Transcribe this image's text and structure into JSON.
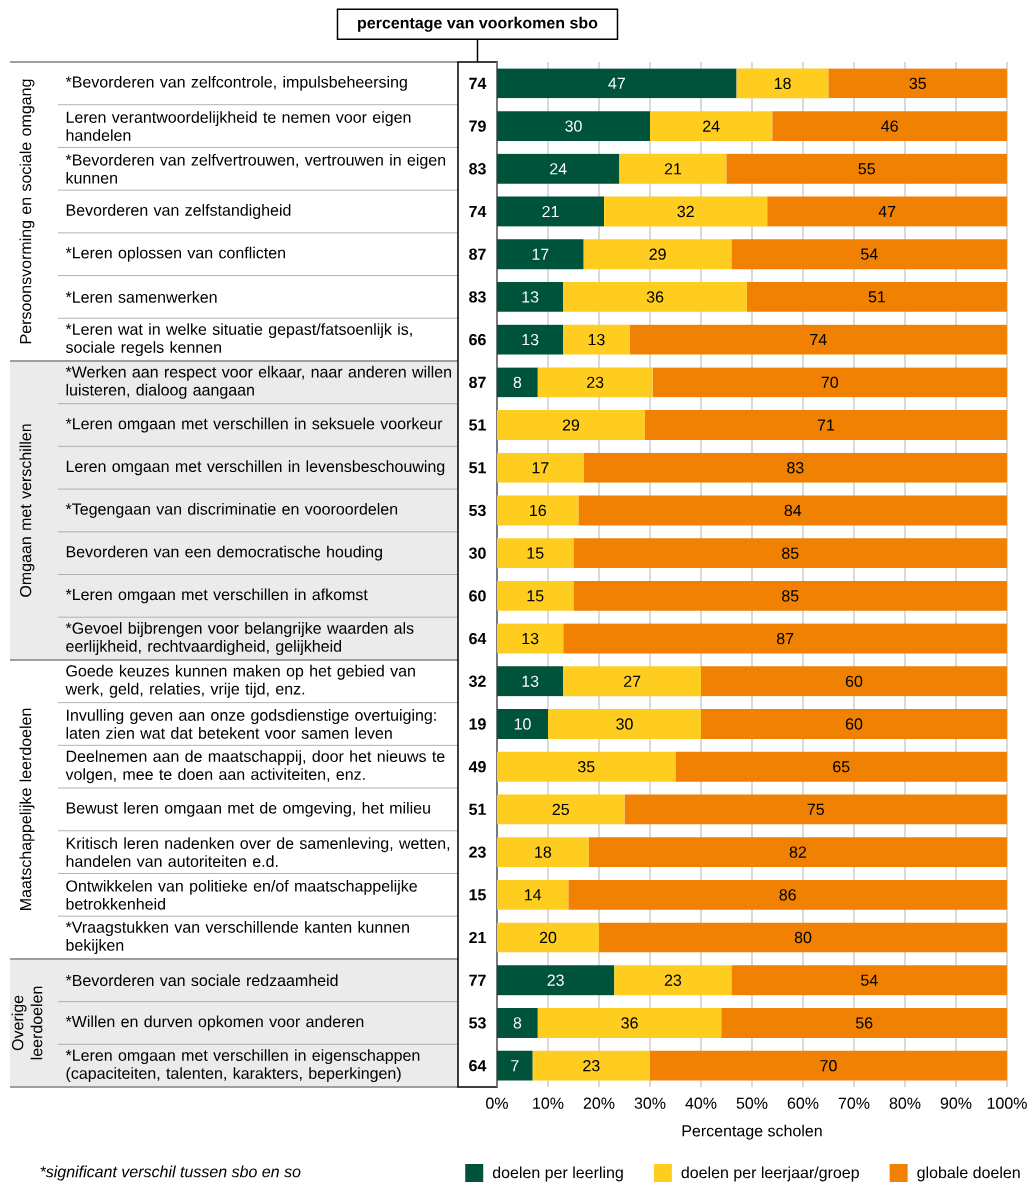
{
  "chart_data": [
    {
      "type": "other",
      "title": "percentage van voorkomen sbo",
      "values": [
        74,
        79,
        83,
        74,
        87,
        83,
        66,
        87,
        51,
        51,
        53,
        30,
        60,
        64,
        32,
        19,
        49,
        51,
        23,
        15,
        21,
        77,
        53,
        64
      ],
      "data_labels": true
    },
    {
      "type": "bar",
      "orientation": "horizontal",
      "stacked": true,
      "ylabel": "Persoonsvorming en sociale omgang",
      "categories": [
        "*Bevorderen van zelfcontrole, impulsbeheersing",
        "Leren verantwoordelijkheid te nemen voor eigen handelen",
        "*Bevorderen van zelfvertrouwen, vertrouwen in eigen kunnen",
        "Bevorderen van zelfstandigheid",
        "*Leren oplossen van conflicten",
        "*Leren samenwerken",
        "*Leren wat in welke situatie gepast/fatsoenlijk is, sociale regels kennen"
      ],
      "series": [
        {
          "color": "#00533b",
          "values": [
            47,
            30,
            24,
            21,
            17,
            13,
            13
          ]
        },
        {
          "color": "#fecd1f",
          "values": [
            18,
            24,
            21,
            32,
            29,
            36,
            13
          ]
        },
        {
          "color": "#f08102",
          "values": [
            35,
            46,
            55,
            47,
            54,
            51,
            74
          ]
        }
      ],
      "xlim": [
        0,
        100
      ],
      "xticks": [
        0,
        10,
        20,
        30,
        40,
        50,
        60,
        70,
        80,
        90,
        100
      ],
      "grid": "x",
      "tick_labels": "y",
      "data_labels": true
    },
    {
      "type": "bar",
      "orientation": "horizontal",
      "stacked": true,
      "ylabel": "Omgaan met verschillen",
      "categories": [
        "*Werken aan respect voor elkaar, naar anderen willen luisteren, dialoog aangaan",
        "*Leren omgaan met verschillen in seksuele voorkeur",
        "Leren omgaan met verschillen in levensbeschouwing",
        "*Tegengaan van discriminatie en vooroordelen",
        "Bevorderen van een democratische houding",
        "*Leren omgaan met verschillen in afkomst",
        "*Gevoel bijbrengen voor belangrijke waarden als eerlijkheid, rechtvaardigheid, gelijkheid"
      ],
      "series": [
        {
          "color": "#00533b",
          "values": [
            8,
            null,
            null,
            null,
            null,
            null,
            null
          ],
          "value_labels": [
            "8",
            null,
            null,
            null,
            null,
            null,
            null
          ]
        },
        {
          "color": "#fecd1f",
          "values": [
            22.5,
            29,
            17,
            16,
            15,
            15,
            13
          ],
          "value_labels": [
            "23",
            "29",
            "17",
            "16",
            "15",
            "15",
            "13"
          ]
        },
        {
          "color": "#f08102",
          "values": [
            69.5,
            71,
            83,
            84,
            85,
            85,
            87
          ],
          "value_labels": [
            "70",
            "71",
            "83",
            "84",
            "85",
            "85",
            "87"
          ]
        }
      ],
      "xlim": [
        0,
        100
      ],
      "xticks": [
        0,
        10,
        20,
        30,
        40,
        50,
        60,
        70,
        80,
        90,
        100
      ],
      "grid": "x",
      "tick_labels": "y"
    },
    {
      "type": "bar",
      "orientation": "horizontal",
      "stacked": true,
      "ylabel": "Maatschappelijke leerdoelen",
      "categories": [
        "Goede keuzes kunnen maken op het gebied van werk, geld, relaties, vrije tijd, enz.",
        "Invulling geven aan onze godsdienstige overtuiging: laten zien wat dat betekent voor samen leven",
        "Deelnemen aan de maatschappij, door het nieuws te volgen, mee te doen aan activiteiten, enz.",
        "Bewust leren omgaan met de omgeving, het milieu",
        "Kritisch leren nadenken over de samenleving, wetten, handelen van autoriteiten e.d.",
        "Ontwikkelen van politieke en/of maatschappelijke betrokkenheid",
        "*Vraagstukken van verschillende kanten kunnen bekijken"
      ],
      "series": [
        {
          "color": "#00533b",
          "values": [
            13,
            10,
            null,
            null,
            null,
            null,
            null
          ]
        },
        {
          "color": "#fecd1f",
          "values": [
            27,
            30,
            35,
            25,
            18,
            14,
            20
          ]
        },
        {
          "color": "#f08102",
          "values": [
            60,
            60,
            65,
            75,
            82,
            86,
            80
          ]
        }
      ],
      "xlim": [
        0,
        100
      ],
      "xticks": [
        0,
        10,
        20,
        30,
        40,
        50,
        60,
        70,
        80,
        90,
        100
      ],
      "grid": "x",
      "tick_labels": "y",
      "data_labels": true
    },
    {
      "type": "bar",
      "orientation": "horizontal",
      "stacked": true,
      "ylabel": "Overige leerdoelen",
      "xlabel": "Percentage scholen",
      "categories": [
        "*Bevorderen van sociale redzaamheid",
        "*Willen en durven opkomen voor anderen",
        "*Leren omgaan met verschillen in eigenschappen (capaciteiten, talenten, karakters, beperkingen)"
      ],
      "series": [
        {
          "name": "doelen per leerling",
          "color": "#00533b",
          "values": [
            23,
            8,
            7
          ]
        },
        {
          "name": "doelen per leerjaar/groep",
          "color": "#fecd1f",
          "values": [
            23,
            36,
            23
          ]
        },
        {
          "name": "globale doelen",
          "color": "#f08102",
          "values": [
            54,
            56,
            70
          ]
        }
      ],
      "xlim": [
        0,
        100
      ],
      "xticks": [
        {
          "value": 0,
          "label": "0%"
        },
        {
          "value": 10,
          "label": "10%"
        },
        {
          "value": 20,
          "label": "20%"
        },
        {
          "value": 30,
          "label": "30%"
        },
        {
          "value": 40,
          "label": "40%"
        },
        {
          "value": 50,
          "label": "50%"
        },
        {
          "value": 60,
          "label": "60%"
        },
        {
          "value": 70,
          "label": "70%"
        },
        {
          "value": 80,
          "label": "80%"
        },
        {
          "value": 90,
          "label": "90%"
        },
        {
          "value": 100,
          "label": "100%"
        }
      ],
      "grid": "x",
      "legend": "bottom",
      "data_labels": true,
      "annotations": [
        "*significant verschil tussen sbo en so"
      ]
    }
  ]
}
